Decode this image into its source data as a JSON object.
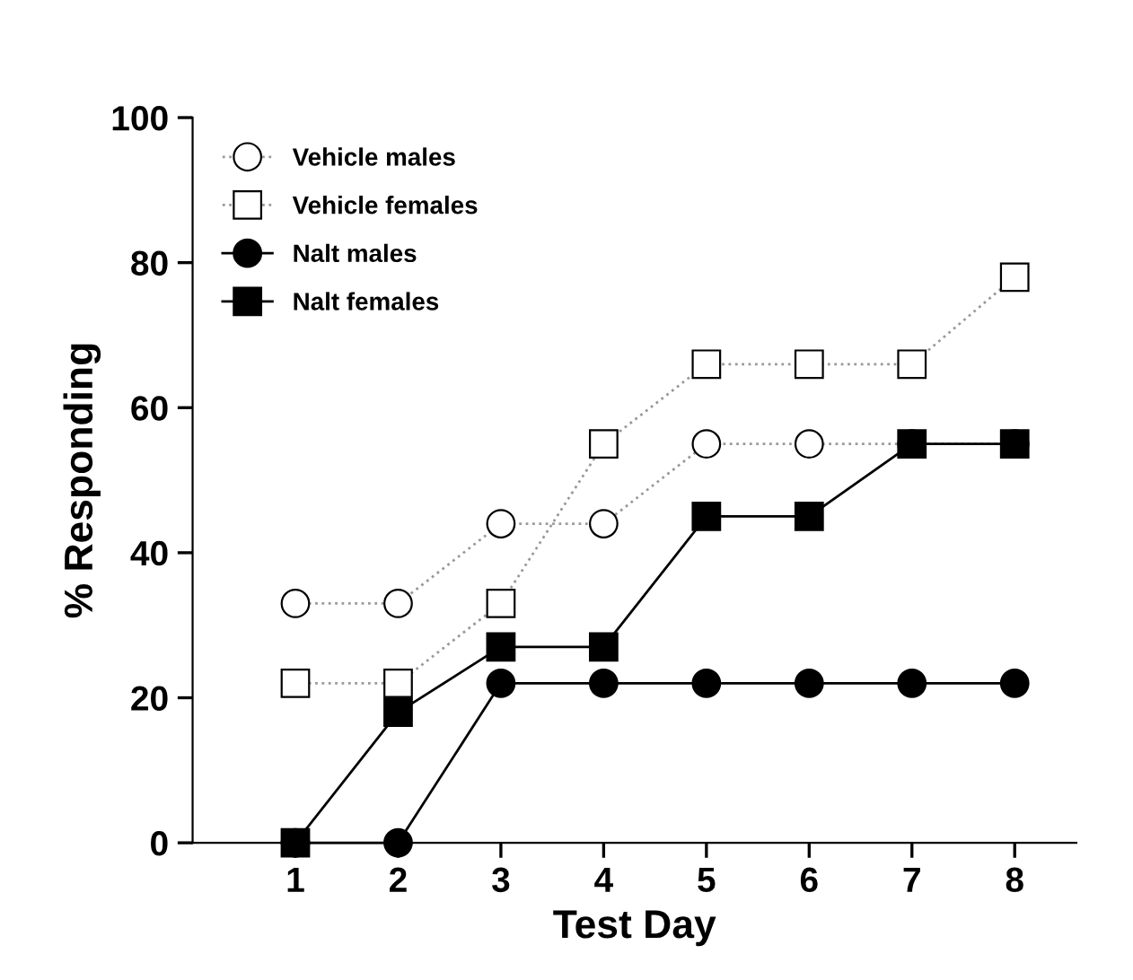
{
  "chart_data": {
    "type": "line",
    "xlabel": "Test Day",
    "ylabel": "% Responding",
    "x": [
      1,
      2,
      3,
      4,
      5,
      6,
      7,
      8
    ],
    "xlim": [
      0,
      8.6
    ],
    "xticks": [
      1,
      2,
      3,
      4,
      5,
      6,
      7,
      8
    ],
    "ylim": [
      0,
      100
    ],
    "yticks": [
      0,
      20,
      40,
      60,
      80,
      100
    ],
    "grid": false,
    "legend": "top left",
    "series": [
      {
        "name": "Vehicle males",
        "color": "#ffffff",
        "marker": "circle",
        "line_style": "dotted",
        "values": [
          33,
          33,
          44,
          44,
          55,
          55,
          55,
          55
        ]
      },
      {
        "name": "Vehicle females",
        "color": "#ffffff",
        "marker": "square",
        "line_style": "dotted",
        "values": [
          22,
          22,
          33,
          55,
          66,
          66,
          66,
          78
        ]
      },
      {
        "name": "Nalt males",
        "color": "#000000",
        "marker": "circle",
        "line_style": "solid",
        "values": [
          0,
          0,
          22,
          22,
          22,
          22,
          22,
          22
        ]
      },
      {
        "name": "Nalt females",
        "color": "#000000",
        "marker": "square",
        "line_style": "solid",
        "values": [
          0,
          18,
          27,
          27,
          45,
          45,
          55,
          55
        ]
      }
    ]
  }
}
